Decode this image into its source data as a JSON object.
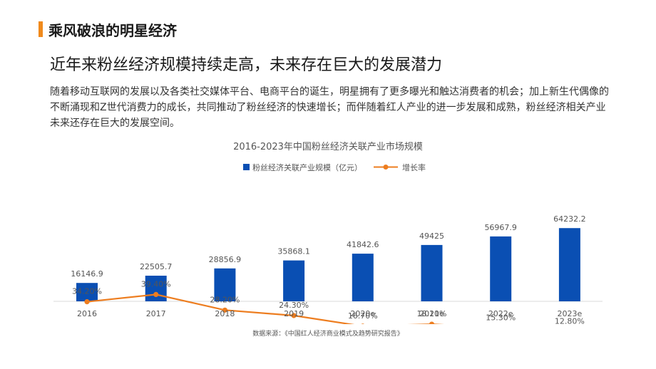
{
  "header": {
    "section_title": "乘风破浪的明星经济",
    "headline": "近年来粉丝经济规模持续走高，未来存在巨大的发展潜力",
    "paragraph": "随着移动互联网的发展以及各类社交媒体平台、电商平台的诞生，明星拥有了更多曝光和触达消费者的机会；加上新生代偶像的不断涌现和Z世代消费力的成长，共同推动了粉丝经济的快速增长；而伴随着红人产业的进一步发展和成熟，粉丝经济相关产业未来还存在巨大的发展空间。"
  },
  "colors": {
    "accent": "#f08a1c",
    "bar": "#0a4fb3",
    "line": "#ed7d1f",
    "axis": "#d9d9d9"
  },
  "chart_data": {
    "type": "bar",
    "title": "2016-2023年中国粉丝经济关联产业市场规模",
    "categories": [
      "2016",
      "2017",
      "2018",
      "2019",
      "2020e",
      "2021e",
      "2022e",
      "2023e"
    ],
    "series": [
      {
        "name": "粉丝经济关联产业规模（亿元）",
        "type": "bar",
        "values": [
          16146.9,
          22505.7,
          28856.9,
          35868.1,
          41842.6,
          49425,
          56967.9,
          64232.2
        ],
        "labels": [
          "16146.9",
          "22505.7",
          "28856.9",
          "35868.1",
          "41842.6",
          "49425",
          "56967.9",
          "64232.2"
        ]
      },
      {
        "name": "增长率",
        "type": "line",
        "values": [
          34.2,
          39.4,
          28.2,
          24.3,
          16.7,
          18.1,
          15.3,
          12.8
        ],
        "labels": [
          "34.20%",
          "39.40%",
          "28.20%",
          "24.30%",
          "16.70%",
          "18.10%",
          "15.30%",
          "12.80%"
        ]
      }
    ],
    "legend_position": "top",
    "grid": false
  },
  "source": "数据来源：《中国红人经济商业模式及趋势研究报告》"
}
